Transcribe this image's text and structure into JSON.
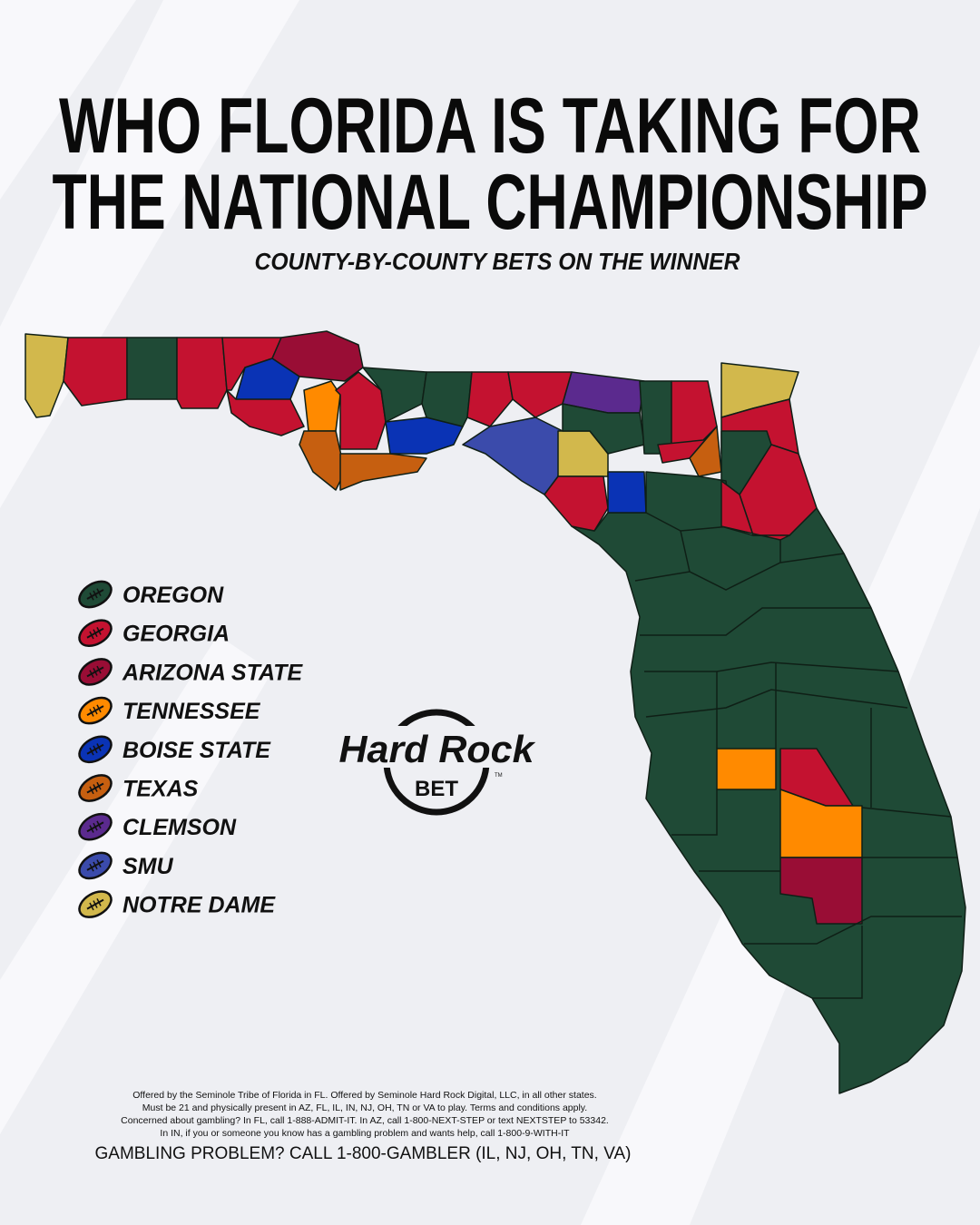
{
  "header": {
    "title_lines": [
      "WHO FLORIDA IS TAKING FOR",
      "THE NATIONAL CHAMPIONSHIP"
    ],
    "subtitle": "COUNTY-BY-COUNTY BETS ON THE WINNER"
  },
  "legend": [
    {
      "name": "OREGON",
      "color": "#1f4a36"
    },
    {
      "name": "GEORGIA",
      "color": "#c41230"
    },
    {
      "name": "ARIZONA STATE",
      "color": "#990d35"
    },
    {
      "name": "TENNESSEE",
      "color": "#ff8a00"
    },
    {
      "name": "BOISE STATE",
      "color": "#0a33b5"
    },
    {
      "name": "TEXAS",
      "color": "#c65f10"
    },
    {
      "name": "CLEMSON",
      "color": "#5b2a8e"
    },
    {
      "name": "SMU",
      "color": "#3b4bab"
    },
    {
      "name": "NOTRE DAME",
      "color": "#d2b84c"
    }
  ],
  "logo": {
    "brand": "Hard Rock",
    "sub": "BET",
    "mark": "TM"
  },
  "disclaimer": {
    "lines": [
      "Offered by the Seminole Tribe of Florida in FL. Offered by Seminole Hard Rock Digital, LLC, in all other states.",
      "Must be 21 and physically present in AZ, FL, IL, IN, NJ, OH, TN or VA to play. Terms and conditions apply.",
      "Concerned about gambling? In FL, call 1-888-ADMIT-IT. In AZ, call 1-800-NEXT-STEP or text NEXTSTEP to 53342.",
      "In IN, if you or someone you know has a gambling problem and wants help, call 1-800-9-WITH-IT"
    ],
    "helpline": "GAMBLING PROBLEM? CALL 1-800-GAMBLER (IL, NJ, OH, TN, VA)"
  }
}
